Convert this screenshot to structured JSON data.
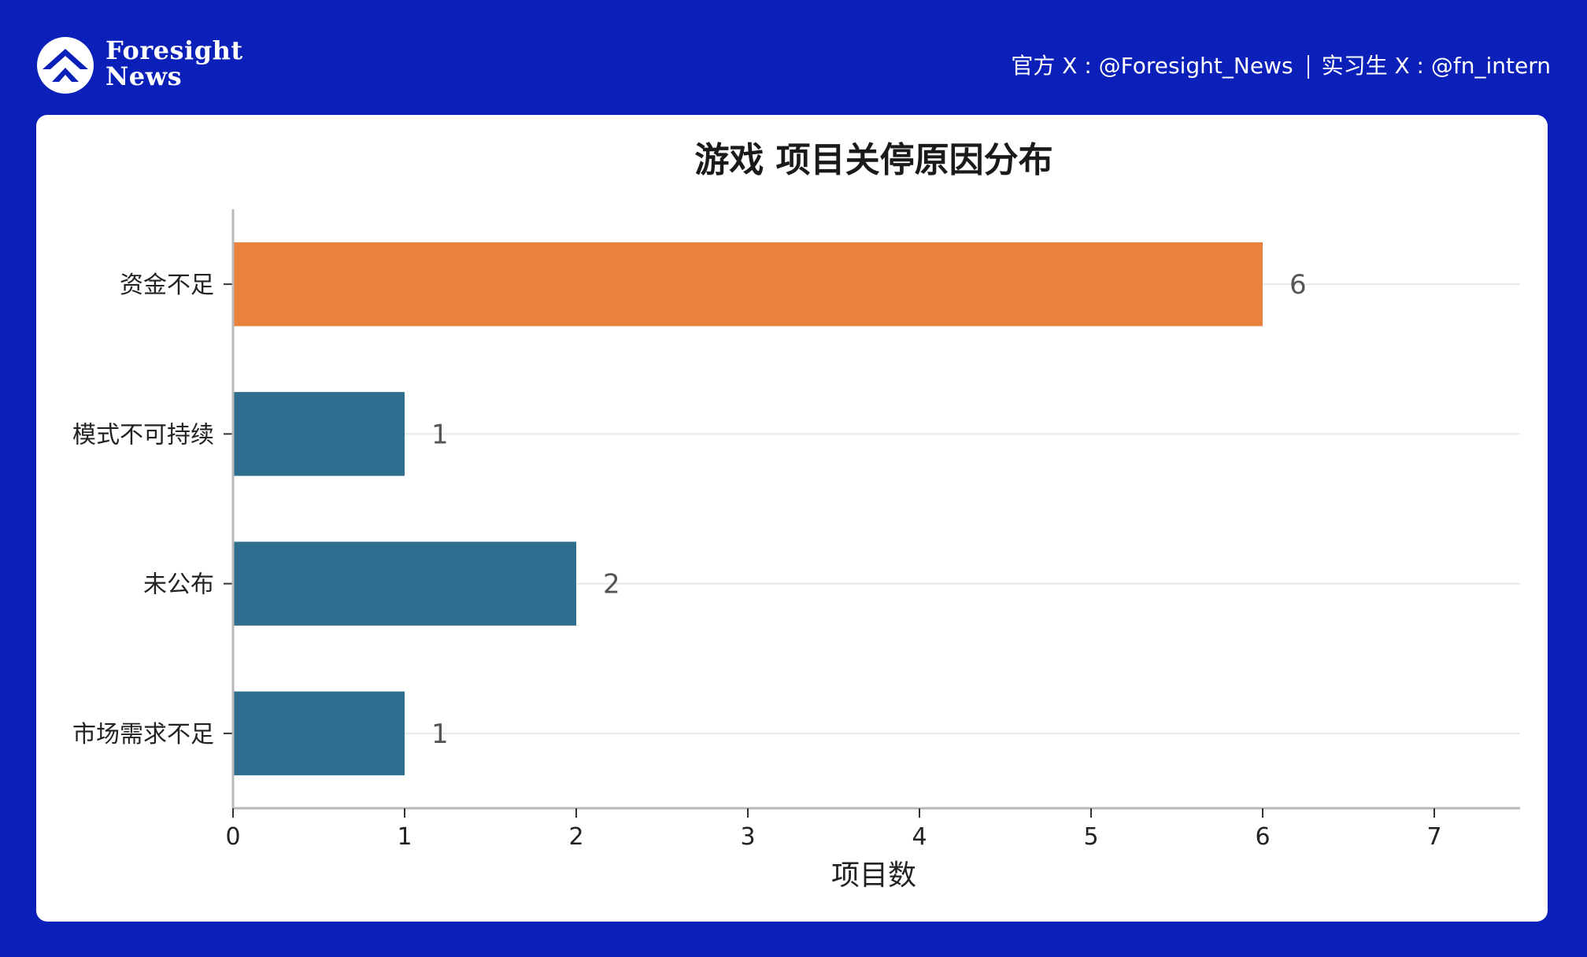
{
  "header": {
    "brand_line1": "Foresight",
    "brand_line2": "News",
    "official_label": "官方 X : @Foresight_News",
    "intern_label": "实习生 X : @fn_intern"
  },
  "colors": {
    "background": "#0b20b8",
    "highlight_bar": "#e8823c",
    "bar": "#2e6f8f"
  },
  "chart_data": {
    "type": "bar",
    "orientation": "horizontal",
    "title": "游戏  项目关停原因分布",
    "xlabel": "项目数",
    "ylabel": "",
    "categories": [
      "资金不足",
      "模式不可持续",
      "未公布",
      "市场需求不足"
    ],
    "values": [
      6,
      1,
      2,
      1
    ],
    "highlight": "资金不足",
    "xlim": [
      0,
      7.5
    ],
    "xticks": [
      0,
      1,
      2,
      3,
      4,
      5,
      6,
      7
    ],
    "grid": "horizontal"
  }
}
